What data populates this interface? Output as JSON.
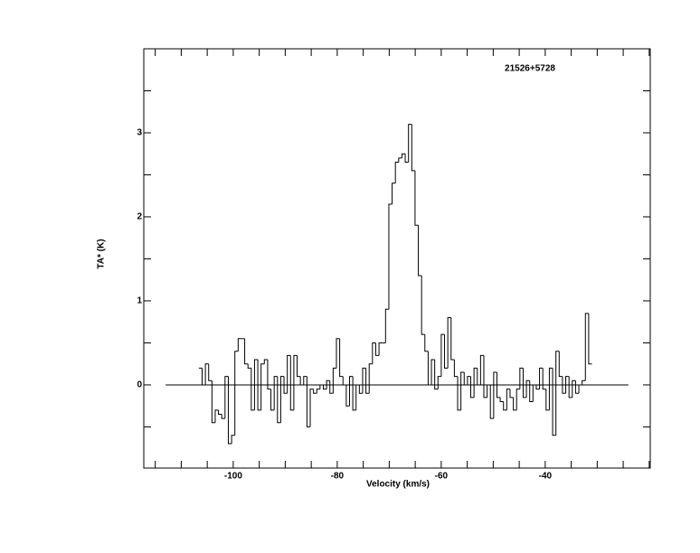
{
  "chart_data": {
    "type": "step",
    "title": "21526+5728",
    "xlabel": "Velocity (km/s)",
    "ylabel": "TA* (K)",
    "xlim": [
      -117.2,
      -19.8
    ],
    "ylim": [
      -0.99,
      4.0
    ],
    "xticks": [
      -100,
      -80,
      -60,
      -40
    ],
    "yticks": [
      0,
      1,
      2,
      3
    ],
    "xminorticks": [
      -115,
      -110,
      -105,
      -100,
      -95,
      -90,
      -85,
      -80,
      -75,
      -70,
      -65,
      -60,
      -55,
      -50,
      -45,
      -40,
      -35,
      -30,
      -25,
      -20
    ],
    "yminorticks": [
      -0.5,
      0,
      0.5,
      1,
      1.5,
      2,
      2.5,
      3,
      3.5
    ],
    "baseline_y": 0,
    "baseline_xlim": [
      -113,
      -24
    ],
    "color": "#000000",
    "x": [
      -106.3,
      -105.67,
      -105.04,
      -104.41,
      -103.78,
      -103.15,
      -102.52,
      -101.89,
      -101.26,
      -100.63,
      -100.0,
      -99.37,
      -98.74,
      -98.11,
      -97.48,
      -96.85,
      -96.22,
      -95.59,
      -94.96,
      -94.33,
      -93.7,
      -93.07,
      -92.44,
      -91.81,
      -91.18,
      -90.55,
      -89.92,
      -89.29,
      -88.66,
      -88.03,
      -87.4,
      -86.77,
      -86.14,
      -85.51,
      -84.88,
      -84.25,
      -83.62,
      -82.99,
      -82.36,
      -81.73,
      -81.1,
      -80.47,
      -79.84,
      -79.21,
      -78.58,
      -77.95,
      -77.32,
      -76.69,
      -76.06,
      -75.43,
      -74.8,
      -74.17,
      -73.54,
      -72.91,
      -72.28,
      -71.65,
      -71.02,
      -70.39,
      -69.76,
      -69.13,
      -68.5,
      -67.87,
      -67.24,
      -66.61,
      -65.98,
      -65.35,
      -64.72,
      -64.09,
      -63.46,
      -62.83,
      -62.2,
      -61.57,
      -60.94,
      -60.31,
      -59.68,
      -59.05,
      -58.42,
      -57.79,
      -57.16,
      -56.53,
      -55.9,
      -55.27,
      -54.64,
      -54.01,
      -53.38,
      -52.75,
      -52.12,
      -51.49,
      -50.86,
      -50.23,
      -49.6,
      -48.97,
      -48.34,
      -47.71,
      -47.08,
      -46.45,
      -45.82,
      -45.19,
      -44.56,
      -43.93,
      -43.3,
      -42.67,
      -42.04,
      -41.41,
      -40.78,
      -40.15,
      -39.52,
      -38.89,
      -38.26,
      -37.63,
      -37.0,
      -36.37,
      -35.74,
      -35.11,
      -34.48,
      -33.85,
      -33.22,
      -32.59,
      -31.96,
      -31.33
    ],
    "values": [
      0.2,
      0.0,
      0.25,
      0.05,
      -0.45,
      -0.3,
      -0.35,
      -0.4,
      0.1,
      -0.7,
      -0.6,
      0.4,
      0.55,
      0.55,
      0.25,
      0.2,
      -0.3,
      0.3,
      -0.3,
      0.25,
      0.3,
      -0.05,
      -0.3,
      0.1,
      -0.45,
      0.1,
      -0.1,
      0.35,
      -0.3,
      0.35,
      0.1,
      0.0,
      0.1,
      -0.5,
      -0.05,
      -0.1,
      -0.05,
      0.0,
      -0.05,
      0.05,
      -0.1,
      0.2,
      0.55,
      0.1,
      0.0,
      -0.25,
      0.1,
      -0.3,
      0.0,
      -0.1,
      0.2,
      -0.1,
      0.25,
      0.5,
      0.35,
      0.5,
      0.5,
      0.9,
      2.15,
      2.4,
      2.65,
      2.7,
      2.75,
      2.65,
      3.1,
      2.55,
      1.9,
      1.3,
      0.6,
      0.4,
      0.0,
      0.3,
      -0.05,
      0.1,
      0.6,
      0.2,
      0.8,
      0.3,
      0.1,
      -0.3,
      0.15,
      0.0,
      0.1,
      -0.15,
      0.2,
      0.0,
      0.35,
      -0.15,
      0.0,
      -0.4,
      0.15,
      -0.15,
      -0.2,
      -0.3,
      -0.05,
      -0.15,
      -0.3,
      -0.05,
      0.2,
      -0.15,
      0.05,
      -0.2,
      0.0,
      -0.05,
      0.2,
      -0.05,
      -0.3,
      0.2,
      -0.6,
      0.4,
      0.1,
      -0.1,
      0.1,
      -0.15,
      0.05,
      -0.1,
      0.0,
      0.05,
      0.85,
      0.25
    ]
  }
}
